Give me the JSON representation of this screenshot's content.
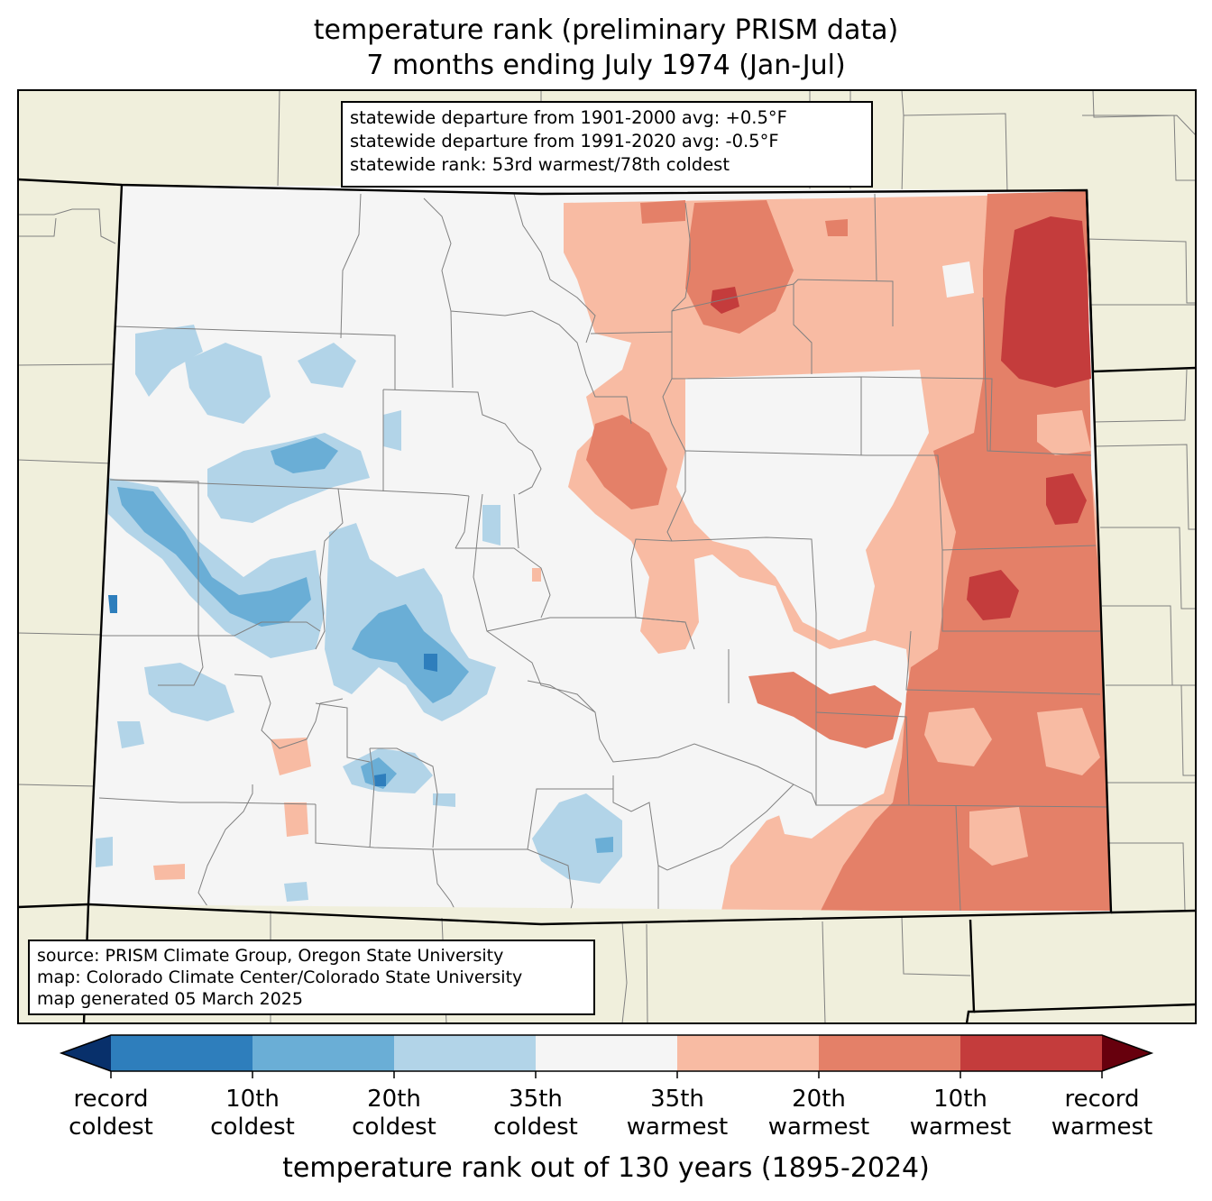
{
  "title": {
    "line1": "temperature rank (preliminary PRISM data)",
    "line2": "7 months ending July 1974 (Jan-Jul)"
  },
  "stats": {
    "line1": "statewide departure from 1901-2000 avg: +0.5°F",
    "line2": "statewide departure from 1991-2020 avg: -0.5°F",
    "line3": "statewide rank: 53rd warmest/78th coldest"
  },
  "source": {
    "line1": "source: PRISM Climate Group, Oregon State University",
    "line2": "map: Colorado Climate Center/Colorado State University",
    "line3": "map generated 05 March 2025"
  },
  "colorbar": {
    "title": "temperature rank out of 130 years (1895-2024)",
    "labels": [
      {
        "line1": "record",
        "line2": "coldest"
      },
      {
        "line1": "10th",
        "line2": "coldest"
      },
      {
        "line1": "20th",
        "line2": "coldest"
      },
      {
        "line1": "35th",
        "line2": "coldest"
      },
      {
        "line1": "35th",
        "line2": "warmest"
      },
      {
        "line1": "20th",
        "line2": "warmest"
      },
      {
        "line1": "10th",
        "line2": "warmest"
      },
      {
        "line1": "record",
        "line2": "warmest"
      }
    ],
    "colors": [
      "#08306b",
      "#2e7ebc",
      "#6aaed6",
      "#b2d4e8",
      "#f5f5f5",
      "#f8bba3",
      "#e48068",
      "#c43c3c",
      "#67000d"
    ]
  },
  "colors": {
    "land_outside": "#f0efdc",
    "state_fill": "#f5f5f5",
    "county_line": "#808080",
    "state_line": "#000000"
  }
}
